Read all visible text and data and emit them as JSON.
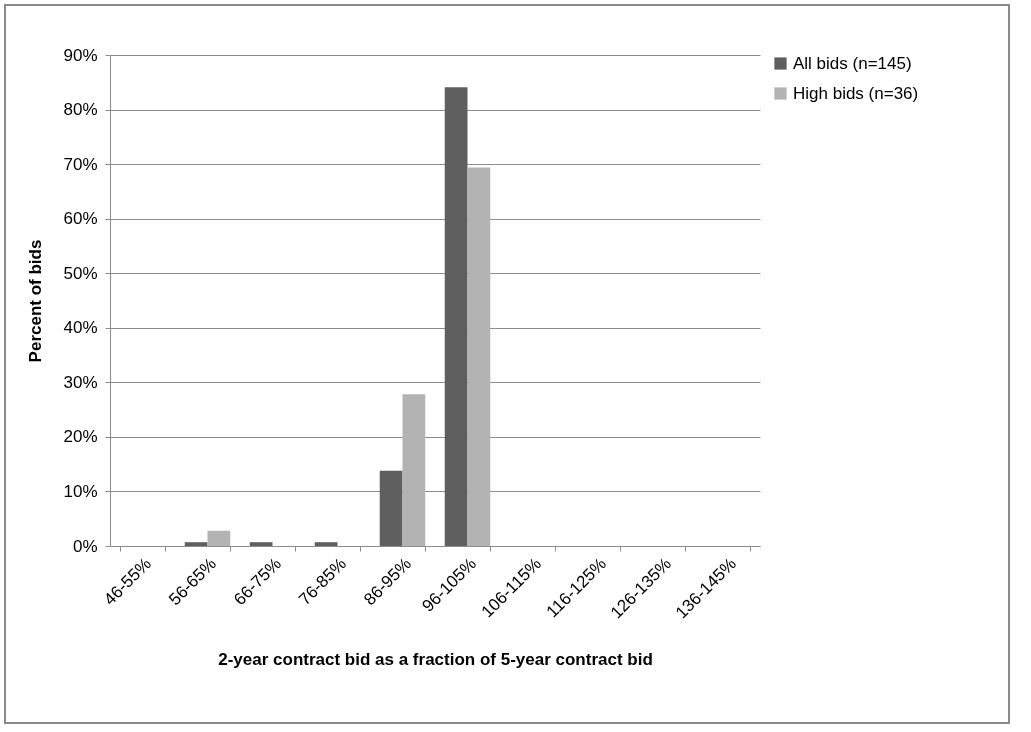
{
  "chart_data": {
    "type": "bar",
    "xlabel": "2-year contract bid as a fraction of 5-year contract bid",
    "ylabel": "Percent of bids",
    "categories": [
      "46-55%",
      "56-65%",
      "66-75%",
      "76-85%",
      "86-95%",
      "96-105%",
      "106-115%",
      "116-125%",
      "126-135%",
      "136-145%"
    ],
    "series": [
      {
        "name": "All bids (n=145)",
        "color": "#5f5f5f",
        "values": [
          0,
          0.7,
          0.7,
          0.7,
          13.8,
          84.1,
          0,
          0,
          0,
          0
        ]
      },
      {
        "name": "High bids (n=36)",
        "color": "#b3b3b3",
        "values": [
          0,
          2.8,
          0,
          0,
          27.8,
          69.4,
          0,
          0,
          0,
          0
        ]
      }
    ],
    "ylim": [
      0,
      90
    ],
    "yticks": [
      {
        "value": 0,
        "label": "0%"
      },
      {
        "value": 10,
        "label": "10%"
      },
      {
        "value": 20,
        "label": "20%"
      },
      {
        "value": 30,
        "label": "30%"
      },
      {
        "value": 40,
        "label": "40%"
      },
      {
        "value": 50,
        "label": "50%"
      },
      {
        "value": 60,
        "label": "60%"
      },
      {
        "value": 70,
        "label": "70%"
      },
      {
        "value": 80,
        "label": "80%"
      },
      {
        "value": 90,
        "label": "90%"
      }
    ],
    "grid": "y",
    "legend": "right"
  }
}
